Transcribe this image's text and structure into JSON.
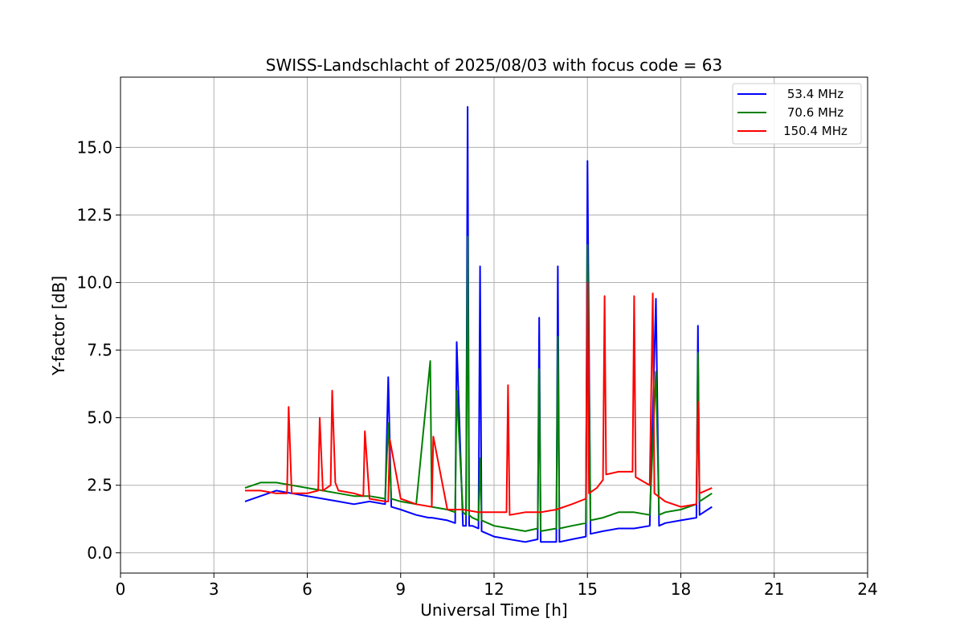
{
  "chart_data": {
    "type": "line",
    "title": "SWISS-Landschlacht of 2025/08/03 with focus code = 63",
    "xlabel": "Universal Time [h]",
    "ylabel": "Y-factor [dB]",
    "xlim": [
      0,
      24
    ],
    "ylim": [
      -0.75,
      17.6
    ],
    "x_ticks": [
      0,
      3,
      6,
      9,
      12,
      15,
      18,
      21,
      24
    ],
    "x_tick_labels": [
      "0",
      "3",
      "6",
      "9",
      "12",
      "15",
      "18",
      "21",
      "24"
    ],
    "y_ticks": [
      0,
      2.5,
      5,
      7.5,
      10,
      12.5,
      15
    ],
    "y_tick_labels": [
      "0.0",
      "2.5",
      "5.0",
      "7.5",
      "10.0",
      "12.5",
      "15.0"
    ],
    "grid": true,
    "legend_position": "top-right",
    "series": [
      {
        "name": "53.4 MHz",
        "color": "#0000ff",
        "x": [
          4.0,
          4.5,
          5.0,
          5.5,
          6.0,
          6.5,
          7.0,
          7.5,
          8.0,
          8.5,
          8.6,
          8.7,
          9.0,
          9.5,
          9.9,
          10.0,
          10.5,
          10.75,
          10.8,
          11.0,
          11.1,
          11.15,
          11.2,
          11.3,
          11.5,
          11.55,
          11.6,
          12.0,
          12.5,
          13.0,
          13.4,
          13.45,
          13.5,
          14.0,
          14.05,
          14.1,
          14.5,
          14.95,
          15.0,
          15.1,
          15.5,
          16.0,
          16.5,
          17.0,
          17.2,
          17.3,
          17.5,
          18.0,
          18.5,
          18.55,
          18.6,
          19.0
        ],
        "y": [
          1.9,
          2.1,
          2.3,
          2.2,
          2.1,
          2.0,
          1.9,
          1.8,
          1.9,
          1.8,
          6.5,
          1.7,
          1.6,
          1.4,
          1.3,
          1.3,
          1.2,
          1.1,
          7.8,
          1.0,
          1.0,
          16.5,
          1.0,
          1.0,
          0.9,
          10.6,
          0.8,
          0.6,
          0.5,
          0.4,
          0.5,
          8.7,
          0.4,
          0.4,
          10.6,
          0.4,
          0.5,
          0.6,
          14.5,
          0.7,
          0.8,
          0.9,
          0.9,
          1.0,
          9.4,
          1.0,
          1.1,
          1.2,
          1.3,
          8.4,
          1.4,
          1.7
        ]
      },
      {
        "name": "70.6 MHz",
        "color": "#008000",
        "x": [
          4.0,
          4.5,
          5.0,
          5.5,
          6.0,
          6.5,
          7.0,
          7.5,
          8.0,
          8.5,
          8.6,
          8.7,
          9.0,
          9.5,
          9.95,
          10.0,
          10.5,
          10.75,
          10.8,
          11.0,
          11.1,
          11.15,
          11.2,
          11.3,
          11.5,
          11.55,
          11.6,
          12.0,
          12.5,
          13.0,
          13.4,
          13.45,
          13.5,
          14.0,
          14.05,
          14.1,
          14.5,
          14.95,
          15.0,
          15.1,
          15.5,
          16.0,
          16.5,
          17.0,
          17.2,
          17.3,
          17.5,
          18.0,
          18.5,
          18.55,
          18.6,
          19.0
        ],
        "y": [
          2.4,
          2.6,
          2.6,
          2.5,
          2.4,
          2.3,
          2.2,
          2.1,
          2.1,
          2.0,
          4.8,
          2.0,
          1.9,
          1.8,
          7.1,
          1.7,
          1.6,
          1.5,
          6.0,
          1.5,
          1.4,
          11.7,
          1.4,
          1.3,
          1.2,
          3.5,
          1.2,
          1.0,
          0.9,
          0.8,
          0.9,
          6.8,
          0.8,
          0.9,
          8.0,
          0.9,
          1.0,
          1.1,
          11.4,
          1.2,
          1.3,
          1.5,
          1.5,
          1.4,
          6.7,
          1.4,
          1.5,
          1.6,
          1.8,
          7.4,
          1.9,
          2.2
        ]
      },
      {
        "name": "150.4 MHz",
        "color": "#ff0000",
        "x": [
          4.0,
          4.5,
          5.0,
          5.35,
          5.4,
          5.5,
          6.0,
          6.35,
          6.4,
          6.5,
          6.75,
          6.8,
          6.9,
          7.0,
          7.5,
          7.8,
          7.85,
          8.0,
          8.5,
          8.6,
          8.65,
          9.0,
          9.5,
          10.0,
          10.05,
          10.5,
          11.0,
          11.5,
          12.0,
          12.4,
          12.45,
          12.5,
          13.0,
          13.5,
          14.0,
          14.5,
          14.95,
          15.0,
          15.05,
          15.3,
          15.5,
          15.55,
          15.6,
          16.0,
          16.45,
          16.5,
          16.55,
          17.0,
          17.1,
          17.15,
          17.5,
          18.0,
          18.5,
          18.55,
          18.6,
          19.0
        ],
        "y": [
          2.3,
          2.3,
          2.2,
          2.2,
          5.4,
          2.2,
          2.2,
          2.3,
          5.0,
          2.3,
          2.5,
          6.0,
          2.6,
          2.3,
          2.2,
          2.1,
          4.5,
          2.0,
          1.9,
          1.9,
          4.2,
          2.0,
          1.8,
          1.7,
          4.3,
          1.6,
          1.6,
          1.5,
          1.5,
          1.5,
          6.2,
          1.4,
          1.5,
          1.5,
          1.6,
          1.8,
          2.0,
          10.0,
          2.2,
          2.4,
          2.7,
          9.5,
          2.9,
          3.0,
          3.0,
          9.5,
          2.8,
          2.5,
          9.6,
          2.2,
          1.9,
          1.7,
          1.8,
          5.6,
          2.2,
          2.4
        ]
      }
    ]
  }
}
